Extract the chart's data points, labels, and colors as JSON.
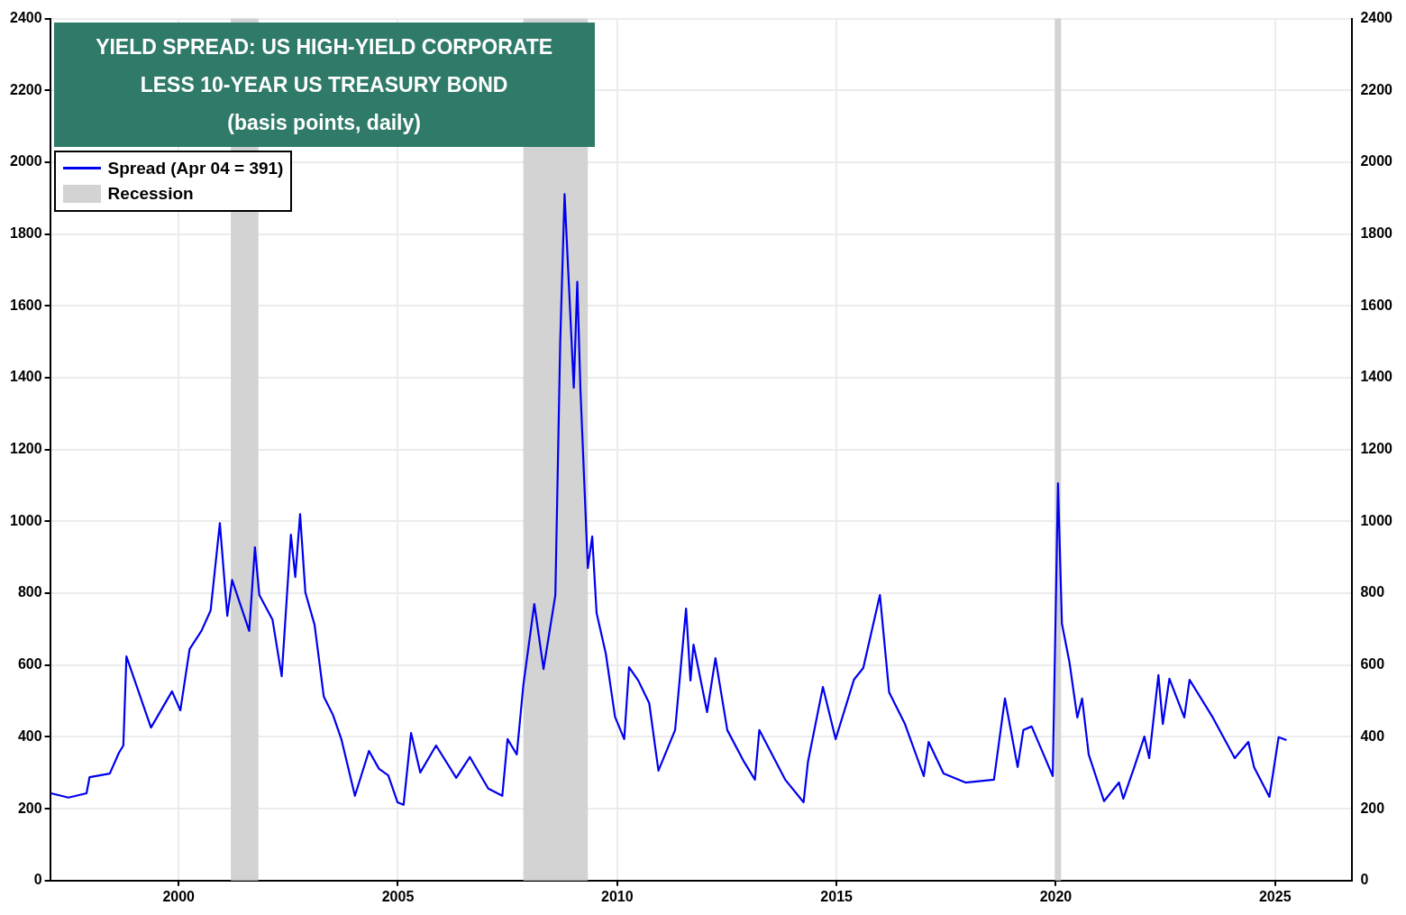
{
  "chart_data": {
    "type": "line",
    "title": "YIELD SPREAD: US HIGH-YIELD CORPORATE LESS 10-YEAR US TREASURY BOND",
    "subtitle": "(basis points, daily)",
    "x": [
      1997.09,
      1997.49,
      1997.9,
      1997.97,
      1998.43,
      1998.64,
      1998.74,
      1998.81,
      1999.37,
      1999.85,
      2000.04,
      2000.25,
      2000.52,
      2000.73,
      2000.94,
      2001.11,
      2001.22,
      2001.61,
      2001.74,
      2001.84,
      2002.14,
      2002.35,
      2002.56,
      2002.66,
      2002.77,
      2002.89,
      2003.1,
      2003.31,
      2003.52,
      2003.71,
      2004.02,
      2004.34,
      2004.57,
      2004.78,
      2004.99,
      2005.13,
      2005.3,
      2005.51,
      2005.87,
      2006.33,
      2006.64,
      2007.06,
      2007.38,
      2007.5,
      2007.71,
      2007.86,
      2008.11,
      2008.32,
      2008.59,
      2008.7,
      2008.8,
      2009.01,
      2009.09,
      2009.16,
      2009.33,
      2009.43,
      2009.53,
      2009.74,
      2009.95,
      2010.16,
      2010.27,
      2010.48,
      2010.73,
      2010.94,
      2011.32,
      2011.57,
      2011.67,
      2011.74,
      2012.05,
      2012.24,
      2012.51,
      2012.89,
      2013.14,
      2013.24,
      2013.83,
      2014.25,
      2014.35,
      2014.69,
      2014.98,
      2015.4,
      2015.61,
      2015.99,
      2016.2,
      2016.56,
      2016.99,
      2017.1,
      2017.44,
      2017.94,
      2018.59,
      2018.84,
      2019.13,
      2019.26,
      2019.45,
      2019.93,
      2020.05,
      2020.14,
      2020.31,
      2020.49,
      2020.6,
      2020.75,
      2021.1,
      2021.44,
      2021.54,
      2021.79,
      2022.02,
      2022.13,
      2022.34,
      2022.44,
      2022.59,
      2022.93,
      2023.05,
      2023.58,
      2024.08,
      2024.39,
      2024.52,
      2024.87,
      2025.08,
      2025.26
    ],
    "series": [
      {
        "name": "Spread (Apr 04 = 391)",
        "color": "#0000ee",
        "values": [
          243,
          231,
          243,
          288,
          298,
          356,
          376,
          624,
          426,
          527,
          474,
          644,
          695,
          752,
          995,
          737,
          837,
          695,
          928,
          795,
          727,
          569,
          963,
          845,
          1020,
          802,
          712,
          512,
          461,
          394,
          236,
          361,
          311,
          293,
          218,
          211,
          411,
          301,
          376,
          286,
          344,
          256,
          236,
          394,
          351,
          544,
          770,
          589,
          795,
          1497,
          1911,
          1372,
          1667,
          1372,
          870,
          958,
          745,
          632,
          456,
          394,
          594,
          557,
          494,
          306,
          419,
          757,
          557,
          657,
          469,
          619,
          419,
          331,
          281,
          419,
          281,
          218,
          331,
          539,
          394,
          560,
          592,
          795,
          524,
          436,
          291,
          386,
          298,
          273,
          281,
          507,
          316,
          419,
          429,
          291,
          1106,
          715,
          609,
          454,
          507,
          351,
          221,
          273,
          228,
          316,
          401,
          341,
          572,
          436,
          562,
          454,
          559,
          454,
          341,
          386,
          316,
          233,
          399,
          391
        ]
      }
    ],
    "xlim": [
      1997.07,
      2026.76
    ],
    "xticks": [
      2000,
      2005,
      2010,
      2015,
      2020,
      2025
    ],
    "ylim": [
      0,
      2400
    ],
    "yticks": [
      0,
      200,
      400,
      600,
      800,
      1000,
      1200,
      1400,
      1600,
      1800,
      2000,
      2200,
      2400
    ],
    "y2lim": [
      0,
      2400
    ],
    "y2ticks": [
      0,
      200,
      400,
      600,
      800,
      1000,
      1200,
      1400,
      1600,
      1800,
      2000,
      2200,
      2400
    ],
    "bands": [
      {
        "axis": "x",
        "from": 2001.19,
        "to": 2001.82,
        "label": "Recession",
        "color": "#d3d3d3"
      },
      {
        "axis": "x",
        "from": 2007.86,
        "to": 2009.33,
        "color": "#d3d3d3"
      },
      {
        "axis": "x",
        "from": 2019.98,
        "to": 2020.12,
        "color": "#d3d3d3"
      }
    ],
    "grid": true,
    "legend": "top left"
  }
}
